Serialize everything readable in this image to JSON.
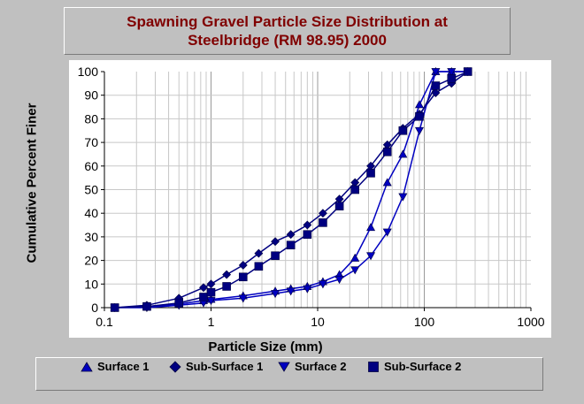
{
  "chart_data": {
    "type": "line",
    "title": "Spawning Gravel Particle Size Distribution at Steelbridge (RM 98.95) 2000",
    "xlabel": "Particle Size (mm)",
    "ylabel": "Cumulative Percent Finer",
    "xscale": "log",
    "xlim": [
      0.1,
      1000
    ],
    "ylim": [
      0,
      100
    ],
    "x_ticks": [
      "0.1",
      "1",
      "10",
      "100",
      "1000"
    ],
    "y_ticks": [
      "0",
      "10",
      "20",
      "30",
      "40",
      "50",
      "60",
      "70",
      "80",
      "90",
      "100"
    ],
    "grid": true,
    "legend_position": "bottom",
    "series": [
      {
        "name": "Surface 1",
        "marker": "triangle-up",
        "color": "#0000c0",
        "x": [
          0.125,
          0.25,
          0.5,
          0.85,
          1,
          2,
          4,
          5.6,
          8,
          11.2,
          16,
          22.4,
          31.5,
          45,
          63,
          90,
          128,
          180,
          256
        ],
        "y": [
          0,
          0.5,
          1.5,
          3,
          3.5,
          5,
          7,
          8,
          9,
          11,
          14,
          21,
          34,
          53,
          65,
          86,
          100,
          100,
          100
        ]
      },
      {
        "name": "Sub-Surface 1",
        "marker": "diamond",
        "color": "#000080",
        "x": [
          0.125,
          0.25,
          0.5,
          0.85,
          1,
          1.4,
          2,
          2.8,
          4,
          5.6,
          8,
          11.2,
          16,
          22.4,
          31.5,
          45,
          63,
          90,
          128,
          180,
          256
        ],
        "y": [
          0,
          1,
          4,
          8.5,
          10,
          14,
          18,
          23,
          28,
          31,
          35,
          40,
          46,
          53,
          60,
          69,
          76,
          82,
          91,
          95,
          100
        ]
      },
      {
        "name": "Surface 2",
        "marker": "triangle-down",
        "color": "#0000c0",
        "x": [
          0.125,
          0.25,
          0.5,
          0.85,
          1,
          2,
          4,
          5.6,
          8,
          11.2,
          16,
          22.4,
          31.5,
          45,
          63,
          90,
          128,
          180,
          256
        ],
        "y": [
          0,
          0,
          1,
          2,
          3,
          4,
          6,
          7,
          8,
          10,
          12,
          16,
          22,
          32,
          47,
          75,
          100,
          100,
          100
        ]
      },
      {
        "name": "Sub-Surface 2",
        "marker": "square",
        "color": "#000080",
        "x": [
          0.125,
          0.25,
          0.5,
          0.85,
          1,
          1.4,
          2,
          2.8,
          4,
          5.6,
          8,
          11.2,
          16,
          22.4,
          31.5,
          45,
          63,
          90,
          128,
          180,
          256
        ],
        "y": [
          0,
          0.5,
          2,
          4.5,
          6.5,
          9,
          13,
          17.5,
          22,
          26.5,
          31,
          36,
          43,
          50,
          57,
          66,
          75,
          81,
          94,
          97,
          100
        ]
      }
    ]
  },
  "legend": {
    "items": [
      "Surface 1",
      "Sub-Surface 1",
      "Surface 2",
      "Sub-Surface 2"
    ]
  }
}
